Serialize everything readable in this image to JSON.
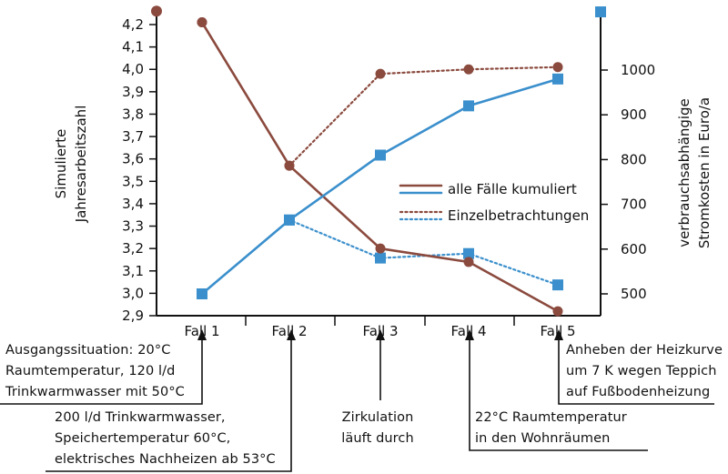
{
  "chart_data": {
    "type": "line",
    "categories": [
      "Fall 1",
      "Fall 2",
      "Fall 3",
      "Fall 4",
      "Fall 5"
    ],
    "y_left": {
      "label_lines": [
        "Simulierte",
        "Jahresarbeitszahl"
      ],
      "ylim": [
        2.9,
        4.25
      ],
      "ticks": [
        "2,9",
        "3,0",
        "3,1",
        "3,2",
        "3,3",
        "3,4",
        "3,5",
        "3,6",
        "3,7",
        "3,8",
        "3,9",
        "4,0",
        "4,1",
        "4,2"
      ]
    },
    "y_right": {
      "label_lines": [
        "verbrauchsabhängige",
        "Stromkosten in Euro/a"
      ],
      "ylim": [
        420,
        1130
      ],
      "ticks": [
        "500",
        "600",
        "700",
        "800",
        "900",
        "1000"
      ]
    },
    "series": [
      {
        "key": "jaz_kum",
        "axis": "left",
        "color": "#8b4a3e",
        "style": "solid",
        "marker": "circle",
        "values": [
          4.21,
          3.57,
          3.2,
          3.14,
          2.92
        ]
      },
      {
        "key": "jaz_einzel",
        "axis": "left",
        "color": "#8b4a3e",
        "style": "dotted",
        "marker": "circle",
        "values": [
          4.21,
          3.57,
          3.98,
          4.0,
          4.01
        ]
      },
      {
        "key": "kosten_kum",
        "axis": "right",
        "color": "#3a8fcc",
        "style": "solid",
        "marker": "square",
        "values": [
          500,
          665,
          810,
          920,
          980
        ]
      },
      {
        "key": "kosten_einzel",
        "axis": "right",
        "color": "#3a8fcc",
        "style": "dotted",
        "marker": "square",
        "values": [
          500,
          665,
          580,
          590,
          520
        ]
      }
    ],
    "legend_marker_circle": {
      "axis": "left",
      "value": 4.26,
      "color": "#8b4a3e"
    },
    "legend_marker_square": {
      "axis": "right",
      "value": 1130,
      "color": "#3a8fcc"
    },
    "legend": [
      {
        "text": "alle Fälle kumuliert",
        "color": "#8b4a3e",
        "color2": "#3a8fcc",
        "style": "solid"
      },
      {
        "text": "Einzelbetrachtungen",
        "color": "#8b4a3e",
        "color2": "#3a8fcc",
        "style": "dotted"
      }
    ],
    "grid": false,
    "legend_position": "right-center"
  },
  "annotations": {
    "fall1": [
      "Ausgangssituation: 20°C",
      "Raumtemperatur, 120 l/d",
      "Trinkwarmwasser mit 50°C"
    ],
    "fall2": [
      "200 l/d Trinkwarmwasser,",
      "Speichertemperatur 60°C,",
      "elektrisches Nachheizen ab 53°C"
    ],
    "fall3": [
      "Zirkulation",
      "läuft durch"
    ],
    "fall4": [
      "22°C Raumtemperatur",
      "in den Wohnräumen"
    ],
    "fall5": [
      "Anheben der Heizkurve",
      "um 7 K wegen Teppich",
      "auf Fußbodenheizung"
    ]
  }
}
